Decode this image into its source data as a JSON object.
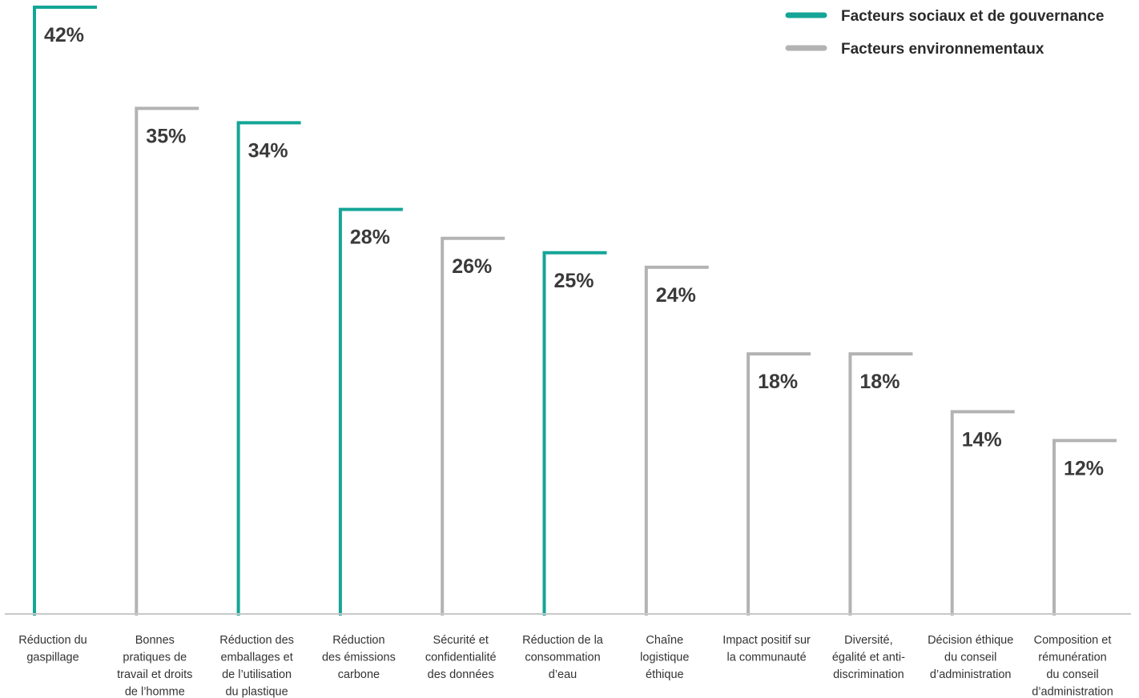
{
  "chart_data": {
    "type": "bar",
    "title": "",
    "xlabel": "",
    "ylabel": "",
    "ylim": [
      0,
      42
    ],
    "grid": false,
    "legend_placement": "top-right",
    "colors": {
      "Facteurs sociaux et de gouvernance": "#14a596",
      "Facteurs environnementaux": "#b3b3b3",
      "axis": "#c8c8c8",
      "text": "#333333"
    },
    "legend": [
      {
        "name": "Facteurs sociaux et de gouvernance",
        "color": "#14a596"
      },
      {
        "name": "Facteurs environnementaux",
        "color": "#b3b3b3"
      }
    ],
    "categories": [
      [
        "Réduction du",
        "gaspillage"
      ],
      [
        "Bonnes",
        "pratiques de",
        "travail et droits",
        "de l’homme"
      ],
      [
        "Réduction des",
        "emballages et",
        "de l’utilisation",
        "du plastique"
      ],
      [
        "Réduction",
        "des émissions",
        "carbone"
      ],
      [
        "Sécurité et",
        "confidentialité",
        "des données"
      ],
      [
        "Réduction de la",
        "consommation",
        "d’eau"
      ],
      [
        "Chaîne",
        "logistique",
        "éthique"
      ],
      [
        "Impact positif sur",
        "la communauté"
      ],
      [
        "Diversité,",
        "égalité et anti-",
        "discrimination"
      ],
      [
        "Décision éthique",
        "du conseil",
        "d’administration"
      ],
      [
        "Composition et",
        "rémunération",
        "du conseil",
        "d’administration"
      ]
    ],
    "values": [
      42,
      35,
      34,
      28,
      26,
      25,
      24,
      18,
      18,
      14,
      12
    ],
    "value_labels": [
      "42%",
      "35%",
      "34%",
      "28%",
      "26%",
      "25%",
      "24%",
      "18%",
      "18%",
      "14%",
      "12%"
    ],
    "groups": [
      "Facteurs sociaux et de gouvernance",
      "Facteurs environnementaux",
      "Facteurs sociaux et de gouvernance",
      "Facteurs sociaux et de gouvernance",
      "Facteurs environnementaux",
      "Facteurs sociaux et de gouvernance",
      "Facteurs environnementaux",
      "Facteurs environnementaux",
      "Facteurs environnementaux",
      "Facteurs environnementaux",
      "Facteurs environnementaux"
    ]
  }
}
